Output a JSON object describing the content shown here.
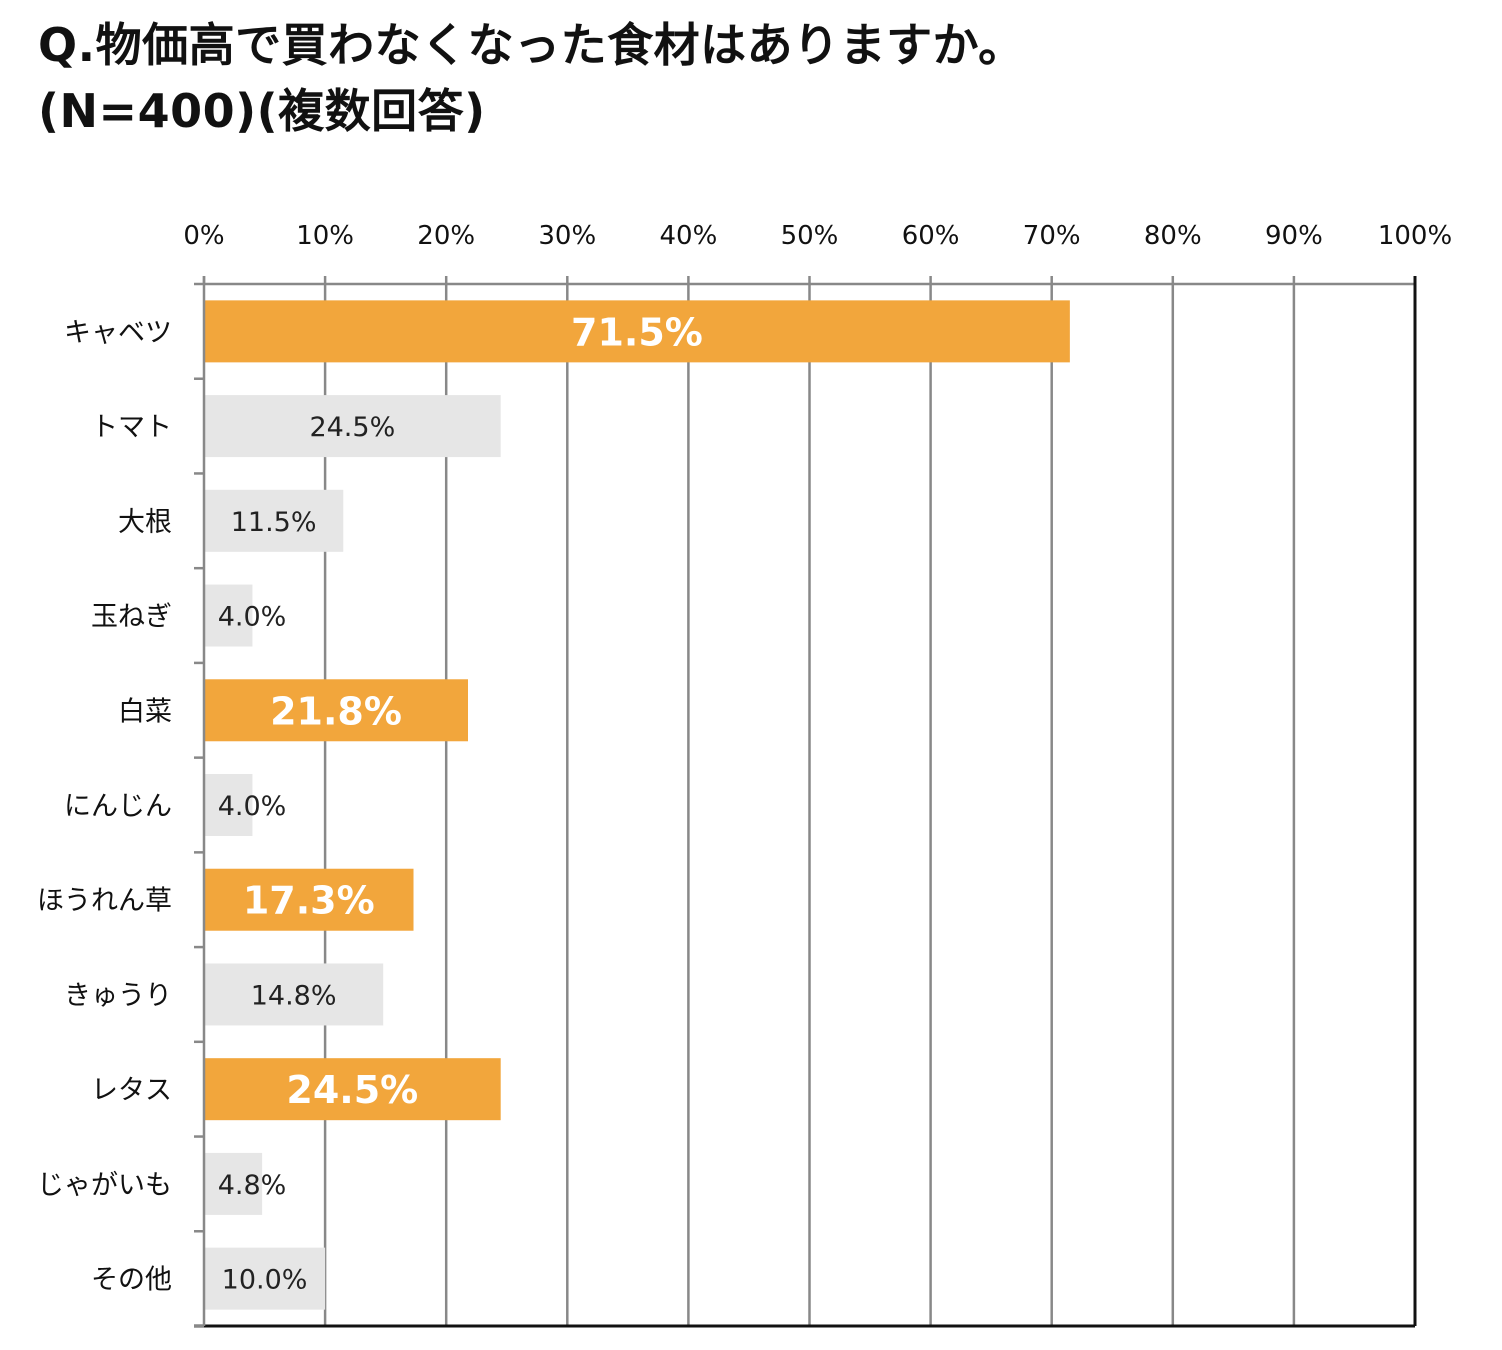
{
  "chart_data": {
    "type": "bar",
    "orientation": "horizontal",
    "title_line1": "Q.物価高で買わなくなった食材はありますか。",
    "title_line2": "(N=400)(複数回答)",
    "categories": [
      "キャベツ",
      "トマト",
      "大根",
      "玉ねぎ",
      "白菜",
      "にんじん",
      "ほうれん草",
      "きゅうり",
      "レタス",
      "じゃがいも",
      "その他"
    ],
    "values": [
      71.5,
      24.5,
      11.5,
      4.0,
      21.8,
      4.0,
      17.3,
      14.8,
      24.5,
      4.8,
      10.0
    ],
    "value_labels": [
      "71.5%",
      "24.5%",
      "11.5%",
      "4.0%",
      "21.8%",
      "4.0%",
      "17.3%",
      "14.8%",
      "24.5%",
      "4.8%",
      "10.0%"
    ],
    "highlighted": [
      true,
      false,
      false,
      false,
      true,
      false,
      true,
      false,
      true,
      false,
      false
    ],
    "xlim": [
      0,
      100
    ],
    "xticks": [
      "0%",
      "10%",
      "20%",
      "30%",
      "40%",
      "50%",
      "60%",
      "70%",
      "80%",
      "90%",
      "100%"
    ],
    "xaxis_position": "top",
    "grid": true,
    "colors": {
      "highlight": "#F2A63C",
      "normal": "#E6E6E6",
      "grid": "#888888",
      "axis": "#111111",
      "highlight_label": "#FFFFFF",
      "normal_label": "#222222"
    }
  }
}
